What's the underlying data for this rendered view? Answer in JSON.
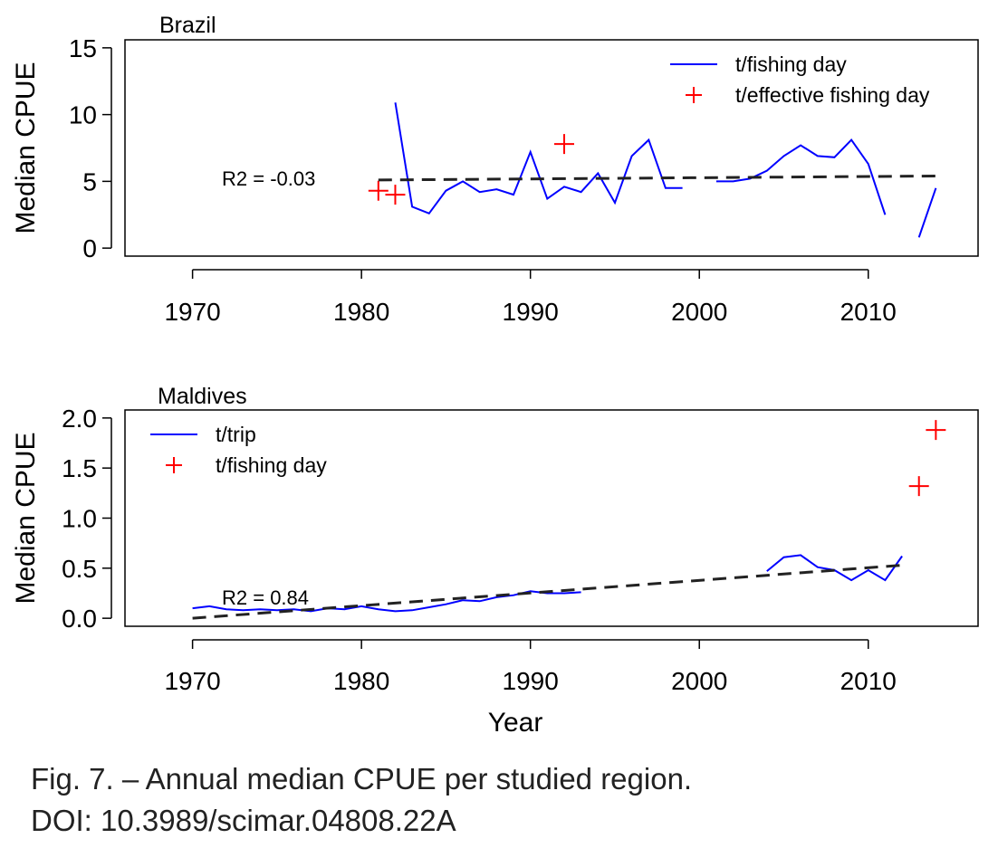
{
  "caption": {
    "line1": "Fig. 7. – Annual median CPUE per studied region.",
    "line2": "DOI: 10.3989/scimar.04808.22A"
  },
  "chart_data": [
    {
      "type": "line",
      "title": "Brazil",
      "xlabel": "",
      "ylabel": "Median CPUE",
      "xlim": [
        1966,
        2016.5
      ],
      "ylim": [
        -0.6,
        15.6
      ],
      "x_ticks": [
        1970,
        1980,
        1990,
        2000,
        2010
      ],
      "y_ticks": [
        0,
        5,
        10,
        15
      ],
      "legend_position": "top-right",
      "annotation": "R2 = -0.03",
      "series": [
        {
          "name": "t/fishing day",
          "kind": "line",
          "color": "#0000ff",
          "segments": [
            {
              "x": [
                1982,
                1983,
                1984,
                1985,
                1986,
                1987,
                1988,
                1989,
                1990,
                1991,
                1992,
                1993,
                1994,
                1995,
                1996,
                1997,
                1998,
                1999
              ],
              "y": [
                10.9,
                3.1,
                2.6,
                4.3,
                5.0,
                4.2,
                4.4,
                4.0,
                7.2,
                3.7,
                4.6,
                4.2,
                5.6,
                3.4,
                6.9,
                8.1,
                4.5,
                4.5
              ]
            },
            {
              "x": [
                2001,
                2002,
                2003,
                2004,
                2005,
                2006,
                2007,
                2008,
                2009,
                2010,
                2011
              ],
              "y": [
                5.0,
                5.0,
                5.2,
                5.8,
                6.9,
                7.7,
                6.9,
                6.8,
                8.1,
                6.3,
                2.5
              ]
            },
            {
              "x": [
                2013,
                2014
              ],
              "y": [
                0.8,
                4.5
              ]
            }
          ]
        },
        {
          "name": "t/effective fishing day",
          "kind": "points",
          "color": "#ff0000",
          "x": [
            1981,
            1982,
            1992
          ],
          "y": [
            4.3,
            4.0,
            7.8
          ]
        },
        {
          "name": "",
          "kind": "trend",
          "color": "#222222",
          "x": [
            1981,
            2014
          ],
          "y": [
            5.1,
            5.4
          ]
        }
      ]
    },
    {
      "type": "line",
      "title": "Maldives",
      "xlabel": "Year",
      "ylabel": "Median CPUE",
      "xlim": [
        1966,
        2016.5
      ],
      "ylim": [
        -0.08,
        2.08
      ],
      "x_ticks": [
        1970,
        1980,
        1990,
        2000,
        2010
      ],
      "y_ticks": [
        0.0,
        0.5,
        1.0,
        1.5,
        2.0
      ],
      "y_tick_labels": [
        "0.0",
        "0.5",
        "1.0",
        "1.5",
        "2.0"
      ],
      "legend_position": "top-left",
      "annotation": "R2 = 0.84",
      "series": [
        {
          "name": "t/trip",
          "kind": "line",
          "color": "#0000ff",
          "segments": [
            {
              "x": [
                1970,
                1971,
                1972,
                1973,
                1974,
                1975,
                1976,
                1977,
                1978,
                1979,
                1980,
                1981,
                1982,
                1983,
                1984,
                1985,
                1986,
                1987,
                1988,
                1989,
                1990,
                1991,
                1992,
                1993
              ],
              "y": [
                0.1,
                0.12,
                0.09,
                0.08,
                0.09,
                0.08,
                0.09,
                0.07,
                0.1,
                0.09,
                0.12,
                0.09,
                0.07,
                0.08,
                0.11,
                0.14,
                0.18,
                0.17,
                0.21,
                0.23,
                0.27,
                0.25,
                0.25,
                0.26
              ]
            },
            {
              "x": [
                2004,
                2005,
                2006,
                2007,
                2008,
                2009,
                2010,
                2011,
                2012
              ],
              "y": [
                0.47,
                0.61,
                0.63,
                0.51,
                0.48,
                0.38,
                0.48,
                0.38,
                0.62
              ]
            }
          ]
        },
        {
          "name": "t/fishing day",
          "kind": "points",
          "color": "#ff0000",
          "x": [
            2013,
            2014
          ],
          "y": [
            1.32,
            1.88
          ]
        },
        {
          "name": "",
          "kind": "trend",
          "color": "#222222",
          "x": [
            1970,
            2012
          ],
          "y": [
            0.0,
            0.53
          ]
        }
      ]
    }
  ]
}
